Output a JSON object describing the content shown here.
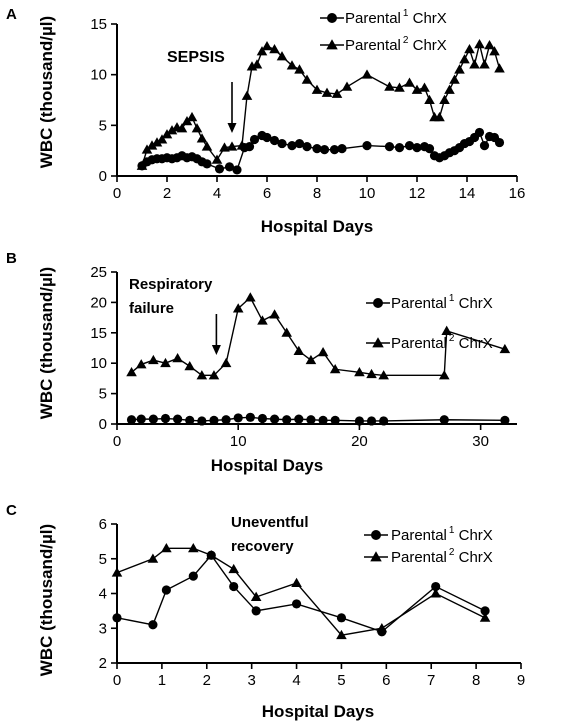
{
  "chart_data": [
    {
      "panel": "A",
      "type": "line",
      "xlabel": "Hospital Days",
      "ylabel": "WBC (thousand/µl)",
      "xlim": [
        0,
        16
      ],
      "ylim": [
        0,
        15
      ],
      "xticks": [
        0,
        2,
        4,
        6,
        8,
        10,
        12,
        14,
        16
      ],
      "yticks": [
        0,
        5,
        10,
        15
      ],
      "annotation": "SEPSIS",
      "arrow_x": 4.6,
      "legend_position": "top-right",
      "legend": [
        {
          "prefix": "Parental",
          "sup": "1",
          "suffix": " ChrX",
          "marker": "circle"
        },
        {
          "prefix": "Parental",
          "sup": "2",
          "suffix": " ChrX",
          "marker": "triangle"
        }
      ],
      "series": [
        {
          "marker": "circle",
          "x": [
            1.0,
            1.2,
            1.4,
            1.6,
            1.8,
            2.0,
            2.2,
            2.4,
            2.6,
            2.8,
            3.0,
            3.2,
            3.4,
            3.6,
            4.1,
            4.5,
            4.8,
            5.1,
            5.3,
            5.5,
            5.8,
            6.0,
            6.3,
            6.6,
            7.0,
            7.3,
            7.6,
            8.0,
            8.3,
            8.7,
            9.0,
            10.0,
            10.9,
            11.3,
            11.7,
            12.0,
            12.3,
            12.5,
            12.7,
            12.9,
            13.1,
            13.3,
            13.5,
            13.7,
            13.9,
            14.1,
            14.3,
            14.5,
            14.7,
            14.9,
            15.1,
            15.3
          ],
          "y": [
            1.0,
            1.4,
            1.6,
            1.7,
            1.7,
            1.8,
            1.7,
            1.8,
            2.0,
            1.8,
            1.9,
            1.7,
            1.4,
            1.2,
            0.7,
            0.9,
            0.6,
            2.8,
            2.9,
            3.6,
            4.0,
            3.8,
            3.5,
            3.2,
            3.0,
            3.2,
            2.9,
            2.7,
            2.6,
            2.6,
            2.7,
            3.0,
            2.9,
            2.8,
            3.0,
            2.8,
            2.9,
            2.7,
            2.0,
            1.8,
            2.0,
            2.3,
            2.5,
            2.8,
            3.2,
            3.4,
            3.8,
            4.3,
            3.0,
            3.9,
            3.8,
            3.3
          ]
        },
        {
          "marker": "triangle",
          "x": [
            1.0,
            1.2,
            1.4,
            1.6,
            1.8,
            2.0,
            2.2,
            2.4,
            2.6,
            2.8,
            3.0,
            3.2,
            3.4,
            3.6,
            4.0,
            4.3,
            4.6,
            5.0,
            5.2,
            5.4,
            5.6,
            5.8,
            6.0,
            6.3,
            6.6,
            7.0,
            7.3,
            7.6,
            8.0,
            8.4,
            8.8,
            9.2,
            10.0,
            10.9,
            11.3,
            11.7,
            12.0,
            12.3,
            12.5,
            12.7,
            12.9,
            13.1,
            13.3,
            13.5,
            13.7,
            13.9,
            14.1,
            14.3,
            14.5,
            14.7,
            14.9,
            15.1,
            15.3
          ],
          "y": [
            1.0,
            2.6,
            3.0,
            3.3,
            3.6,
            4.1,
            4.5,
            4.8,
            4.7,
            5.4,
            5.8,
            4.7,
            3.7,
            2.9,
            1.6,
            2.8,
            2.9,
            3.0,
            7.9,
            10.8,
            11.0,
            12.3,
            12.8,
            12.5,
            11.8,
            10.9,
            10.5,
            9.5,
            8.5,
            8.2,
            8.1,
            8.8,
            10.0,
            8.8,
            8.7,
            9.2,
            8.5,
            8.7,
            7.5,
            5.8,
            5.8,
            7.5,
            8.5,
            9.5,
            10.5,
            11.5,
            12.5,
            11.0,
            13.0,
            11.0,
            12.9,
            12.3,
            10.6
          ]
        }
      ]
    },
    {
      "panel": "B",
      "type": "line",
      "xlabel": "Hospital Days",
      "ylabel": "WBC (thousand/µl)",
      "xlim": [
        0,
        33
      ],
      "ylim": [
        0,
        25
      ],
      "xticks": [
        0,
        10,
        20,
        30
      ],
      "yticks": [
        0,
        5,
        10,
        15,
        20,
        25
      ],
      "annotation_lines": [
        "Respiratory",
        "failure"
      ],
      "arrow_x": 8.2,
      "legend_position": "right",
      "legend": [
        {
          "prefix": "Parental",
          "sup": "1",
          "suffix": " ChrX",
          "marker": "circle"
        },
        {
          "prefix": "Parental",
          "sup": "2",
          "suffix": " ChrX",
          "marker": "triangle"
        }
      ],
      "series": [
        {
          "marker": "circle",
          "x": [
            1.2,
            2.0,
            3.0,
            4.0,
            5.0,
            6.0,
            7.0,
            8.0,
            9.0,
            10.0,
            11.0,
            12.0,
            13.0,
            14.0,
            15.0,
            16.0,
            17.0,
            18.0,
            20.0,
            21.0,
            22.0,
            27.0,
            32.0
          ],
          "y": [
            0.7,
            0.8,
            0.8,
            0.9,
            0.8,
            0.6,
            0.5,
            0.6,
            0.7,
            1.0,
            1.1,
            0.9,
            0.8,
            0.7,
            0.8,
            0.7,
            0.6,
            0.6,
            0.5,
            0.5,
            0.5,
            0.7,
            0.6
          ]
        },
        {
          "marker": "triangle",
          "x": [
            1.2,
            2.0,
            3.0,
            4.0,
            5.0,
            6.0,
            7.0,
            8.0,
            9.0,
            10.0,
            11.0,
            12.0,
            13.0,
            14.0,
            15.0,
            16.0,
            17.0,
            18.0,
            20.0,
            21.0,
            22.0,
            27.0,
            27.2,
            32.0
          ],
          "y": [
            8.5,
            9.8,
            10.5,
            10.0,
            10.8,
            9.5,
            8.0,
            8.0,
            10.0,
            19.0,
            20.8,
            17.0,
            18.0,
            15.0,
            12.0,
            10.5,
            11.8,
            9.0,
            8.5,
            8.2,
            8.0,
            8.0,
            15.3,
            12.3
          ]
        }
      ]
    },
    {
      "panel": "C",
      "type": "line",
      "xlabel": "Hospital Days",
      "ylabel": "WBC (thousand/µl)",
      "xlim": [
        0,
        9
      ],
      "ylim": [
        2,
        6
      ],
      "xticks": [
        0,
        1,
        2,
        3,
        4,
        5,
        6,
        7,
        8,
        9
      ],
      "yticks": [
        2,
        3,
        4,
        5,
        6
      ],
      "annotation_lines": [
        "Uneventful",
        "recovery"
      ],
      "legend_position": "top-right",
      "legend": [
        {
          "prefix": "Parental",
          "sup": "1",
          "suffix": " ChrX",
          "marker": "circle"
        },
        {
          "prefix": "Parental",
          "sup": "2",
          "suffix": " ChrX",
          "marker": "triangle"
        }
      ],
      "series": [
        {
          "marker": "circle",
          "x": [
            0.0,
            0.8,
            1.1,
            1.7,
            2.1,
            2.6,
            3.1,
            4.0,
            5.0,
            5.9,
            7.1,
            8.2
          ],
          "y": [
            3.3,
            3.1,
            4.1,
            4.5,
            5.1,
            4.2,
            3.5,
            3.7,
            3.3,
            2.9,
            4.2,
            3.5
          ]
        },
        {
          "marker": "triangle",
          "x": [
            0.0,
            0.8,
            1.1,
            1.7,
            2.1,
            2.6,
            3.1,
            4.0,
            5.0,
            5.9,
            7.1,
            8.2
          ],
          "y": [
            4.6,
            5.0,
            5.3,
            5.3,
            5.1,
            4.7,
            3.9,
            4.3,
            2.8,
            3.0,
            4.0,
            3.3
          ]
        }
      ]
    }
  ]
}
